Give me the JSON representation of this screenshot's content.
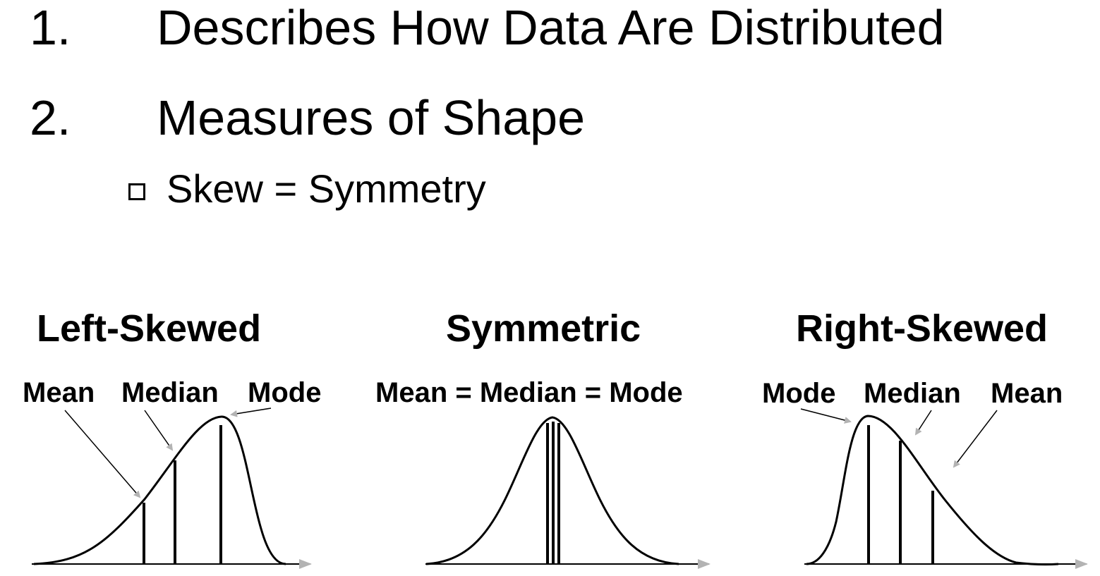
{
  "outline": {
    "items": [
      {
        "number": "1.",
        "text": "Describes How Data Are Distributed"
      },
      {
        "number": "2.",
        "text": "Measures of Shape"
      }
    ],
    "sub_bullet": {
      "text": "Skew = Symmetry"
    }
  },
  "panels": [
    {
      "title": "Left-Skewed",
      "labels": [
        "Mean",
        "Median",
        "Mode"
      ]
    },
    {
      "title": "Symmetric",
      "labels": [
        "Mean = Median = Mode"
      ]
    },
    {
      "title": "Right-Skewed",
      "labels": [
        "Mode",
        "Median",
        "Mean"
      ]
    }
  ],
  "colors": {
    "text": "#000000",
    "arrow_head": "#b3b3b3",
    "line": "#000000"
  }
}
